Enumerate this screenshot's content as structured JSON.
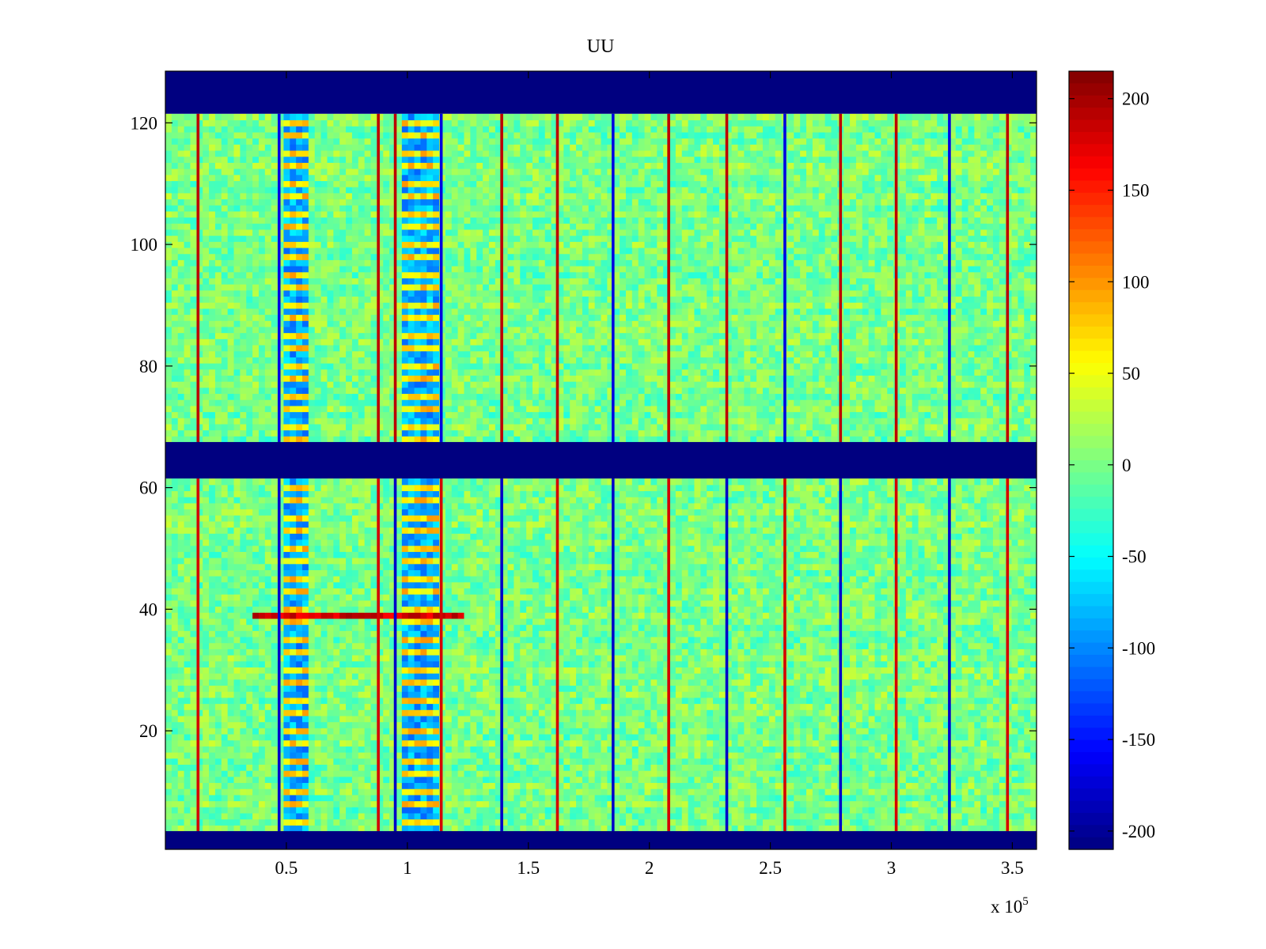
{
  "chart_data": {
    "type": "heatmap",
    "title": "UU",
    "xlabel": "",
    "ylabel": "",
    "x_exponent_label": "x 10",
    "x_exponent": "5",
    "xlim": [
      0,
      3.6
    ],
    "ylim": [
      0.5,
      128.5
    ],
    "x_ticks": [
      {
        "value": 0.5,
        "label": "0.5"
      },
      {
        "value": 1,
        "label": "1"
      },
      {
        "value": 1.5,
        "label": "1.5"
      },
      {
        "value": 2,
        "label": "2"
      },
      {
        "value": 2.5,
        "label": "2.5"
      },
      {
        "value": 3,
        "label": "3"
      },
      {
        "value": 3.5,
        "label": "3.5"
      }
    ],
    "y_ticks": [
      {
        "value": 20,
        "label": "20"
      },
      {
        "value": 40,
        "label": "40"
      },
      {
        "value": 60,
        "label": "60"
      },
      {
        "value": 80,
        "label": "80"
      },
      {
        "value": 100,
        "label": "100"
      },
      {
        "value": 120,
        "label": "120"
      }
    ],
    "colorbar": {
      "colormap": "jet",
      "clim": [
        -210,
        215
      ],
      "ticks": [
        {
          "value": 200,
          "label": "200"
        },
        {
          "value": 150,
          "label": "150"
        },
        {
          "value": 100,
          "label": "100"
        },
        {
          "value": 50,
          "label": "50"
        },
        {
          "value": 0,
          "label": "0"
        },
        {
          "value": -50,
          "label": "-50"
        },
        {
          "value": -100,
          "label": "-100"
        },
        {
          "value": -150,
          "label": "-150"
        },
        {
          "value": -200,
          "label": "-200"
        }
      ]
    },
    "masked_row_bands": [
      {
        "from": 0.5,
        "to": 3.5
      },
      {
        "from": 61.5,
        "to": 67.5
      },
      {
        "from": 121.5,
        "to": 128.5
      }
    ],
    "masked_value": -210,
    "background_value_range": [
      -30,
      30
    ],
    "stripe_columns_x": [
      0.135,
      0.47,
      0.88,
      0.95,
      1.14,
      1.39,
      1.62,
      1.85,
      2.08,
      2.32,
      2.56,
      2.79,
      3.02,
      3.24,
      3.48
    ],
    "broad_bands_x": [
      {
        "from": 0.49,
        "to": 0.58
      },
      {
        "from": 0.98,
        "to": 1.12
      }
    ],
    "row_anomaly": {
      "row": 39,
      "x_from": 0.36,
      "x_to": 1.24,
      "value": 200
    }
  }
}
